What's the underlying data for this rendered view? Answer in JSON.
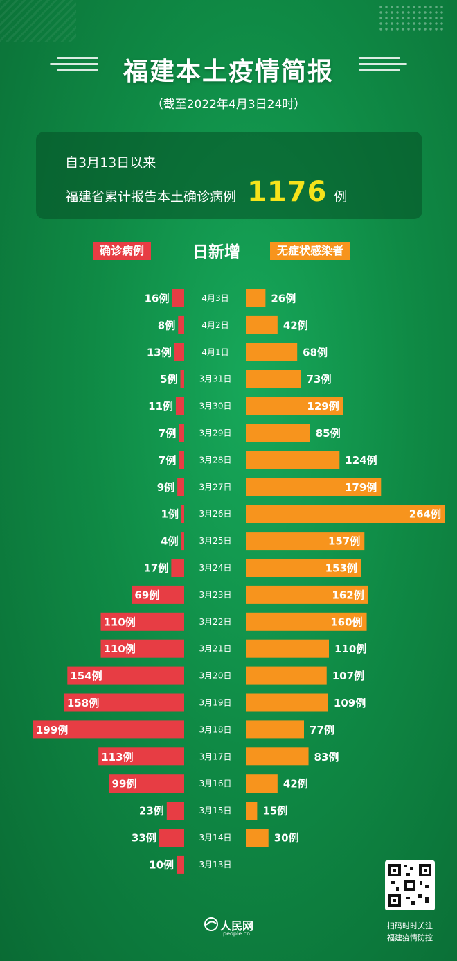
{
  "header": {
    "title": "福建本土疫情简报",
    "subtitle": "（截至2022年4月3日24时）"
  },
  "summary": {
    "line1": "自3月13日以来",
    "line2_prefix": "福建省累计报告本土确诊病例",
    "total": "1176",
    "unit": "例"
  },
  "legend": {
    "confirmed": "确诊病例",
    "center": "日新增",
    "asymptomatic": "无症状感染者"
  },
  "colors": {
    "confirmed": "#e73d44",
    "asymptomatic": "#f7941d",
    "background": "#10904a"
  },
  "chart_data": {
    "type": "bar",
    "title": "日新增",
    "categories": [
      "4月3日",
      "4月2日",
      "4月1日",
      "3月31日",
      "3月30日",
      "3月29日",
      "3月28日",
      "3月27日",
      "3月26日",
      "3月25日",
      "3月24日",
      "3月23日",
      "3月22日",
      "3月21日",
      "3月20日",
      "3月19日",
      "3月18日",
      "3月17日",
      "3月16日",
      "3月15日",
      "3月14日",
      "3月13日"
    ],
    "series": [
      {
        "name": "确诊病例",
        "values": [
          16,
          8,
          13,
          5,
          11,
          7,
          7,
          9,
          1,
          4,
          17,
          69,
          110,
          110,
          154,
          158,
          199,
          113,
          99,
          23,
          33,
          10
        ]
      },
      {
        "name": "无症状感染者",
        "values": [
          26,
          42,
          68,
          73,
          129,
          85,
          124,
          179,
          264,
          157,
          153,
          162,
          160,
          110,
          107,
          109,
          77,
          83,
          42,
          15,
          30,
          null
        ]
      }
    ],
    "value_suffix": "例"
  },
  "footer": {
    "logo_name": "人民网",
    "logo_url": "people.cn",
    "qr_note_line1": "扫码时时关注",
    "qr_note_line2": "福建疫情防控"
  }
}
